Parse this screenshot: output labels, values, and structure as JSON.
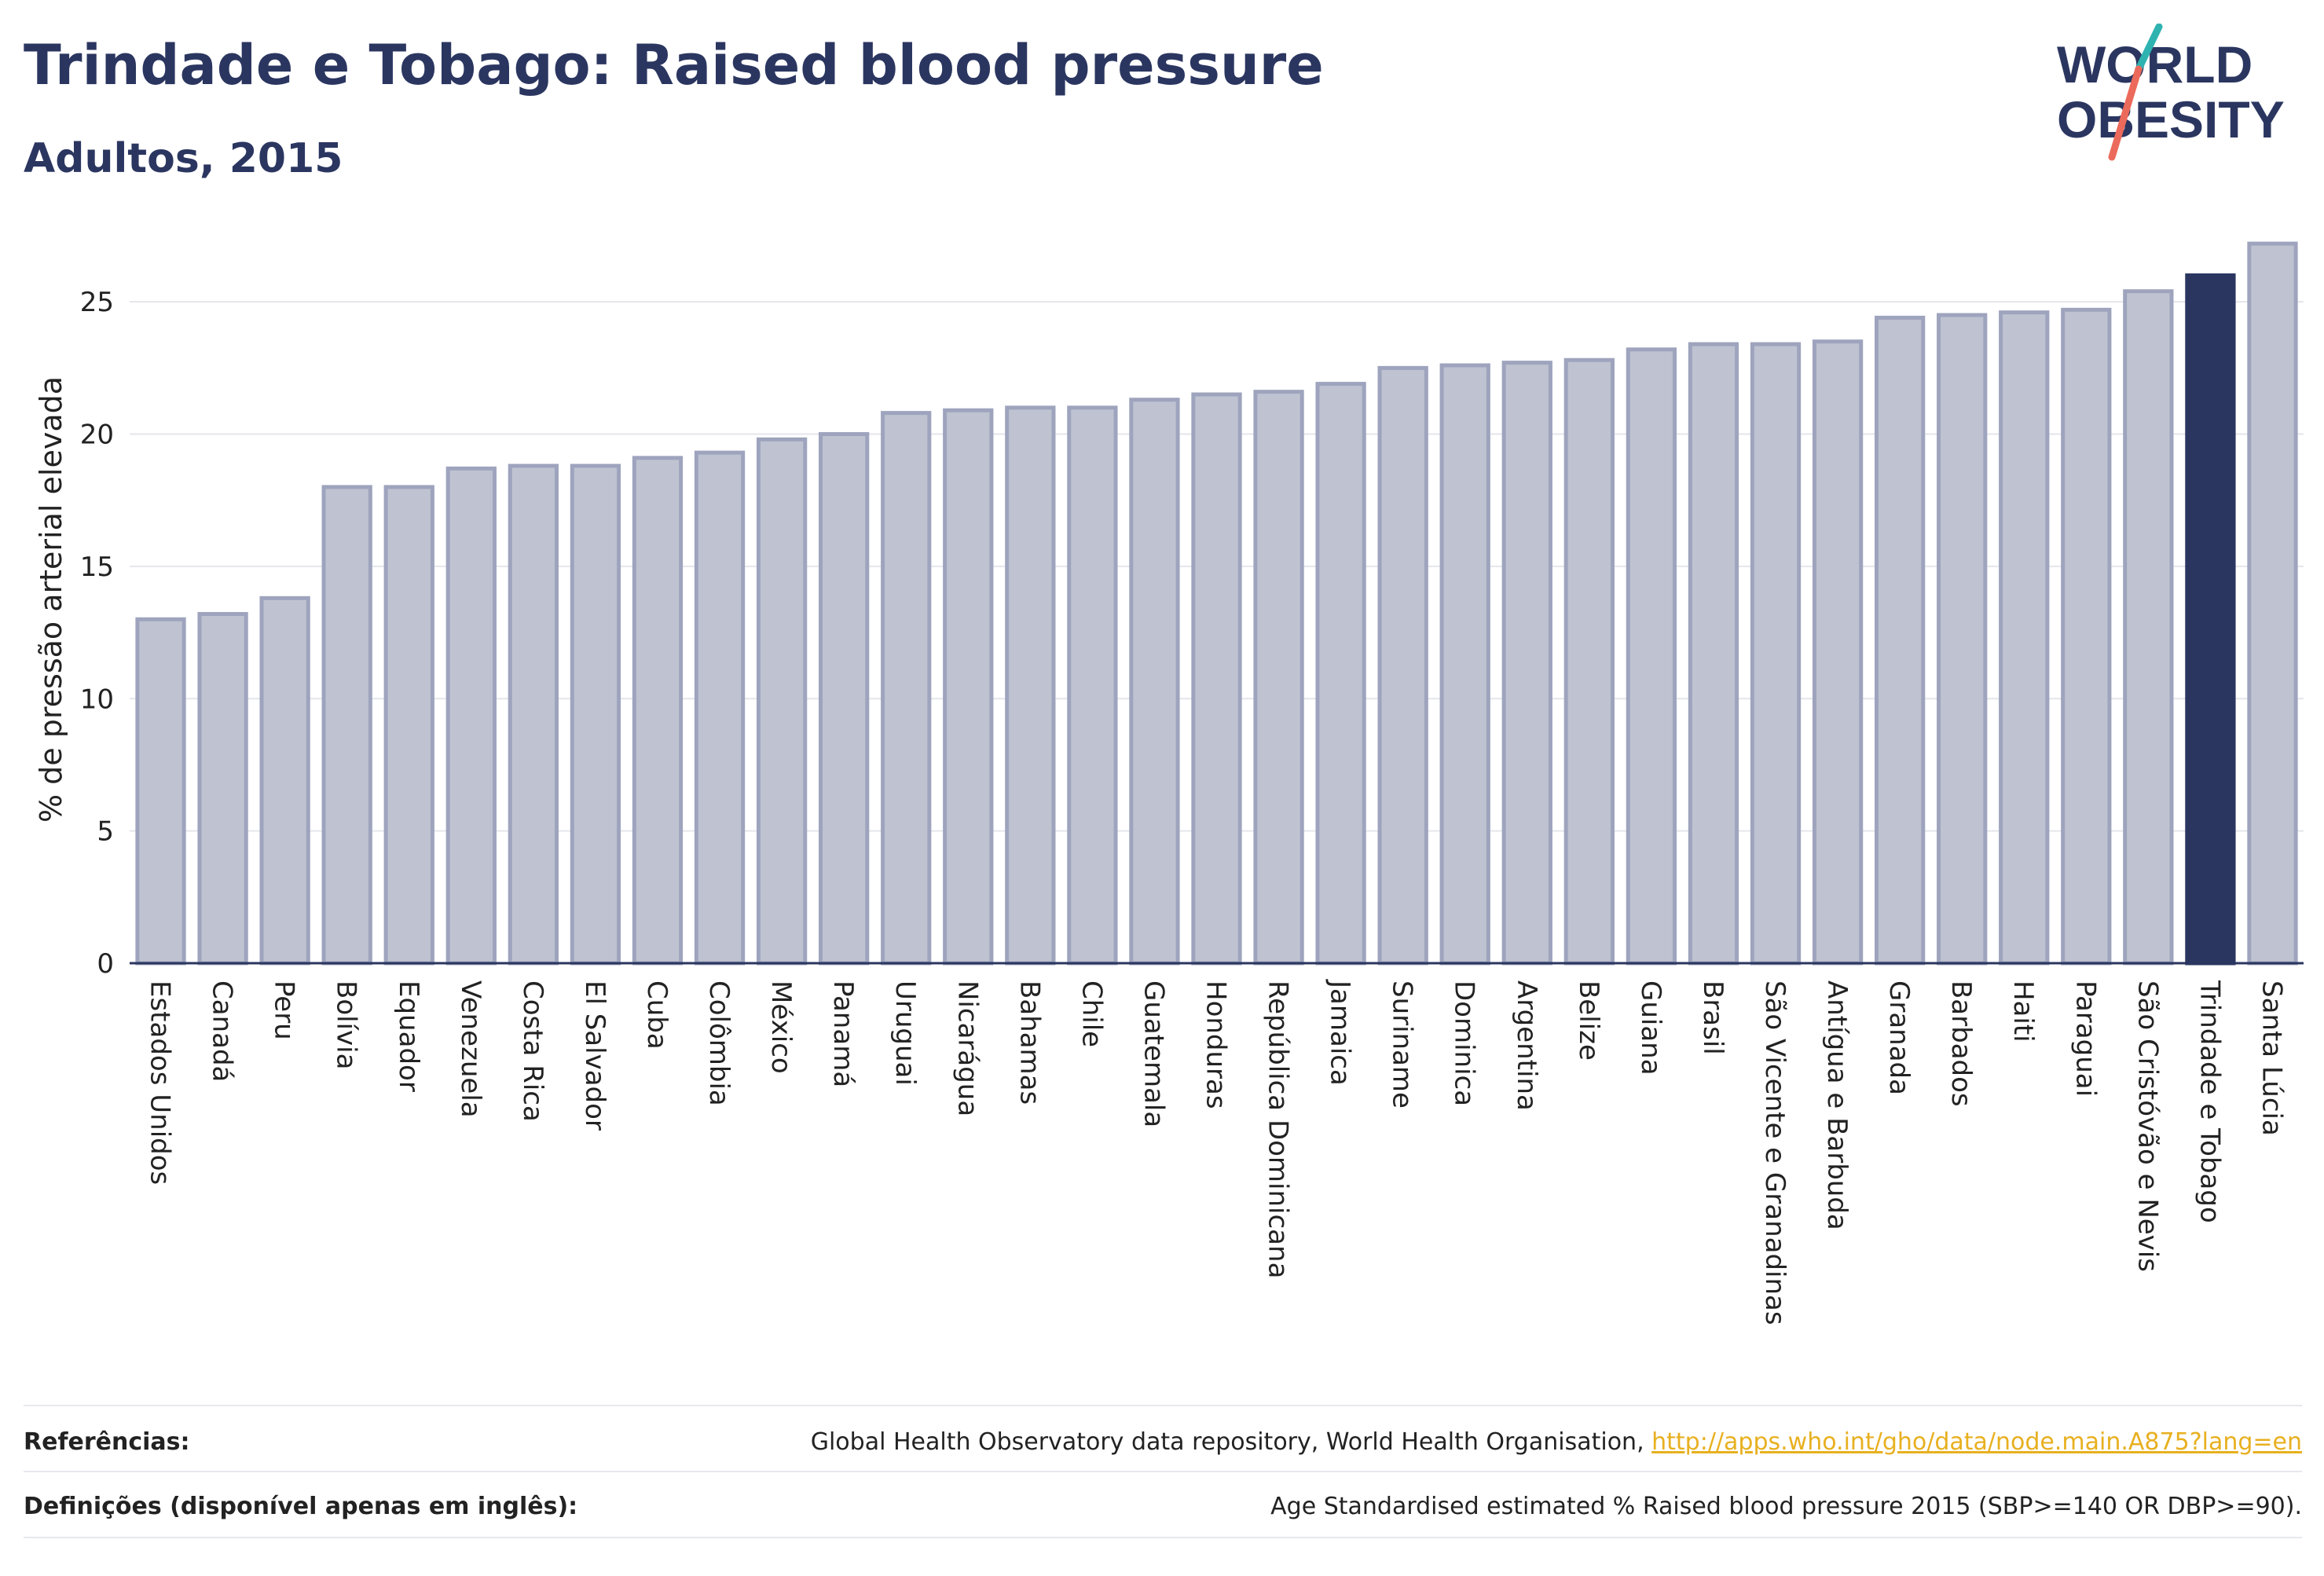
{
  "header": {
    "title": "Trindade e Tobago: Raised blood pressure",
    "subtitle": "Adultos, 2015"
  },
  "logo": {
    "line1": "WORLD",
    "line2": "OBESITY",
    "icon": "world-obesity-logo"
  },
  "colors": {
    "bar": "#bfc3d1",
    "bar_border": "#9ea4bd",
    "highlight": "#2b3660",
    "text": "#2b3660",
    "link": "#e8b020"
  },
  "chart_data": {
    "type": "bar",
    "title": "Trindade e Tobago: Raised blood pressure",
    "subtitle": "Adultos, 2015",
    "xlabel": "",
    "ylabel": "% de pressão arterial elevada",
    "ylim": [
      0,
      27.5
    ],
    "yticks": [
      0,
      5,
      10,
      15,
      20,
      25
    ],
    "grid": true,
    "highlight": "Trindade e Tobago",
    "categories": [
      "Estados Unidos",
      "Canadá",
      "Peru",
      "Bolívia",
      "Equador",
      "Venezuela",
      "Costa Rica",
      "El Salvador",
      "Cuba",
      "Colômbia",
      "México",
      "Panamá",
      "Uruguai",
      "Nicarágua",
      "Bahamas",
      "Chile",
      "Guatemala",
      "Honduras",
      "República Dominicana",
      "Jamaica",
      "Suriname",
      "Dominica",
      "Argentina",
      "Belize",
      "Guiana",
      "Brasil",
      "São Vicente e Granadinas",
      "Antígua e Barbuda",
      "Granada",
      "Barbados",
      "Haiti",
      "Paraguai",
      "São Cristóvão e Nevis",
      "Trindade e Tobago",
      "Santa Lúcia"
    ],
    "values": [
      13.0,
      13.2,
      13.8,
      18.0,
      18.0,
      18.7,
      18.8,
      18.8,
      19.1,
      19.3,
      19.8,
      20.0,
      20.8,
      20.9,
      21.0,
      21.0,
      21.3,
      21.5,
      21.6,
      21.9,
      22.5,
      22.6,
      22.7,
      22.8,
      23.2,
      23.4,
      23.4,
      23.5,
      24.4,
      24.5,
      24.6,
      24.7,
      25.4,
      26.0,
      27.2
    ]
  },
  "footer": {
    "references_label": "Referências:",
    "references_text": "Global Health Observatory data repository, World Health Organisation, ",
    "references_link": "http://apps.who.int/gho/data/node.main.A875?lang=en",
    "definitions_label": "Definições (disponível apenas em inglês):",
    "definitions_text": "Age Standardised estimated % Raised blood pressure 2015 (SBP>=140 OR DBP>=90)."
  }
}
